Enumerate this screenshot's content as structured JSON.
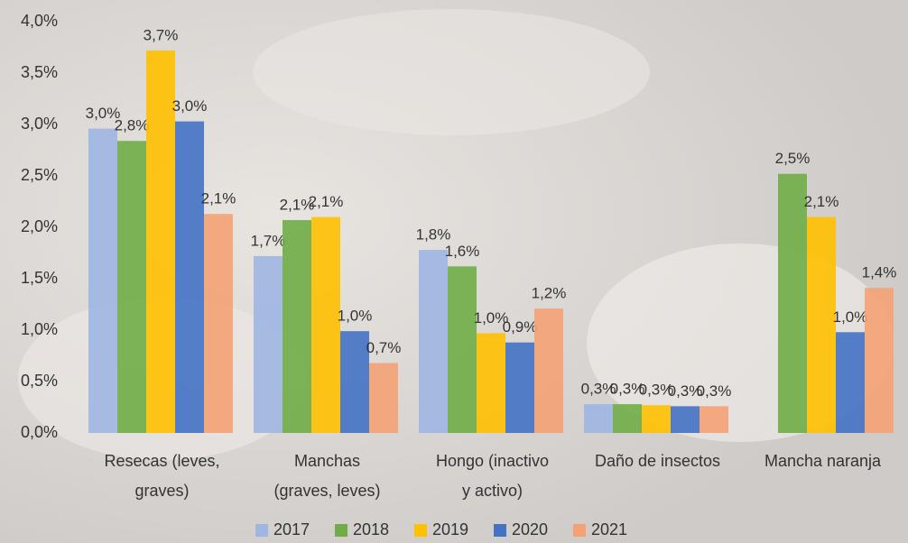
{
  "chart_data": {
    "type": "bar",
    "categories": [
      "Resecas (leves,\ngraves)",
      "Manchas\n(graves, leves)",
      "Hongo (inactivo\ny activo)",
      "Daño de insectos",
      "Mancha naranja"
    ],
    "series": [
      {
        "name": "2017",
        "color": "#9fb6e2",
        "values": [
          2.96,
          1.72,
          1.78,
          0.28,
          null
        ],
        "value_labels": [
          "3,0%",
          "1,7%",
          "1,8%",
          "0,3%",
          null
        ]
      },
      {
        "name": "2018",
        "color": "#70ad47",
        "values": [
          2.84,
          2.07,
          1.62,
          0.28,
          2.52
        ],
        "value_labels": [
          "2,8%",
          "2,1%",
          "1,6%",
          "0,3%",
          "2,5%"
        ]
      },
      {
        "name": "2019",
        "color": "#ffc000",
        "values": [
          3.72,
          2.1,
          0.97,
          0.27,
          2.1
        ],
        "value_labels": [
          "3,7%",
          "2,1%",
          "1,0%",
          "0,3%",
          "2,1%"
        ]
      },
      {
        "name": "2020",
        "color": "#4472c4",
        "values": [
          3.03,
          0.99,
          0.88,
          0.26,
          0.98
        ],
        "value_labels": [
          "3,0%",
          "1,0%",
          "0,9%",
          "0,3%",
          "1,0%"
        ]
      },
      {
        "name": "2021",
        "color": "#f4a274",
        "values": [
          2.13,
          0.68,
          1.21,
          0.26,
          1.41
        ],
        "value_labels": [
          "2,1%",
          "0,7%",
          "1,2%",
          "0,3%",
          "1,4%"
        ]
      }
    ],
    "ylim": [
      0,
      4
    ],
    "yticks": [
      {
        "value": 0,
        "label": "0,0%"
      },
      {
        "value": 0.5,
        "label": "0,5%"
      },
      {
        "value": 1,
        "label": "1,0%"
      },
      {
        "value": 1.5,
        "label": "1,5%"
      },
      {
        "value": 2,
        "label": "2,0%"
      },
      {
        "value": 2.5,
        "label": "2,5%"
      },
      {
        "value": 3,
        "label": "3,0%"
      },
      {
        "value": 3.5,
        "label": "3,5%"
      },
      {
        "value": 4,
        "label": "4,0%"
      }
    ],
    "legend": "bottom"
  }
}
